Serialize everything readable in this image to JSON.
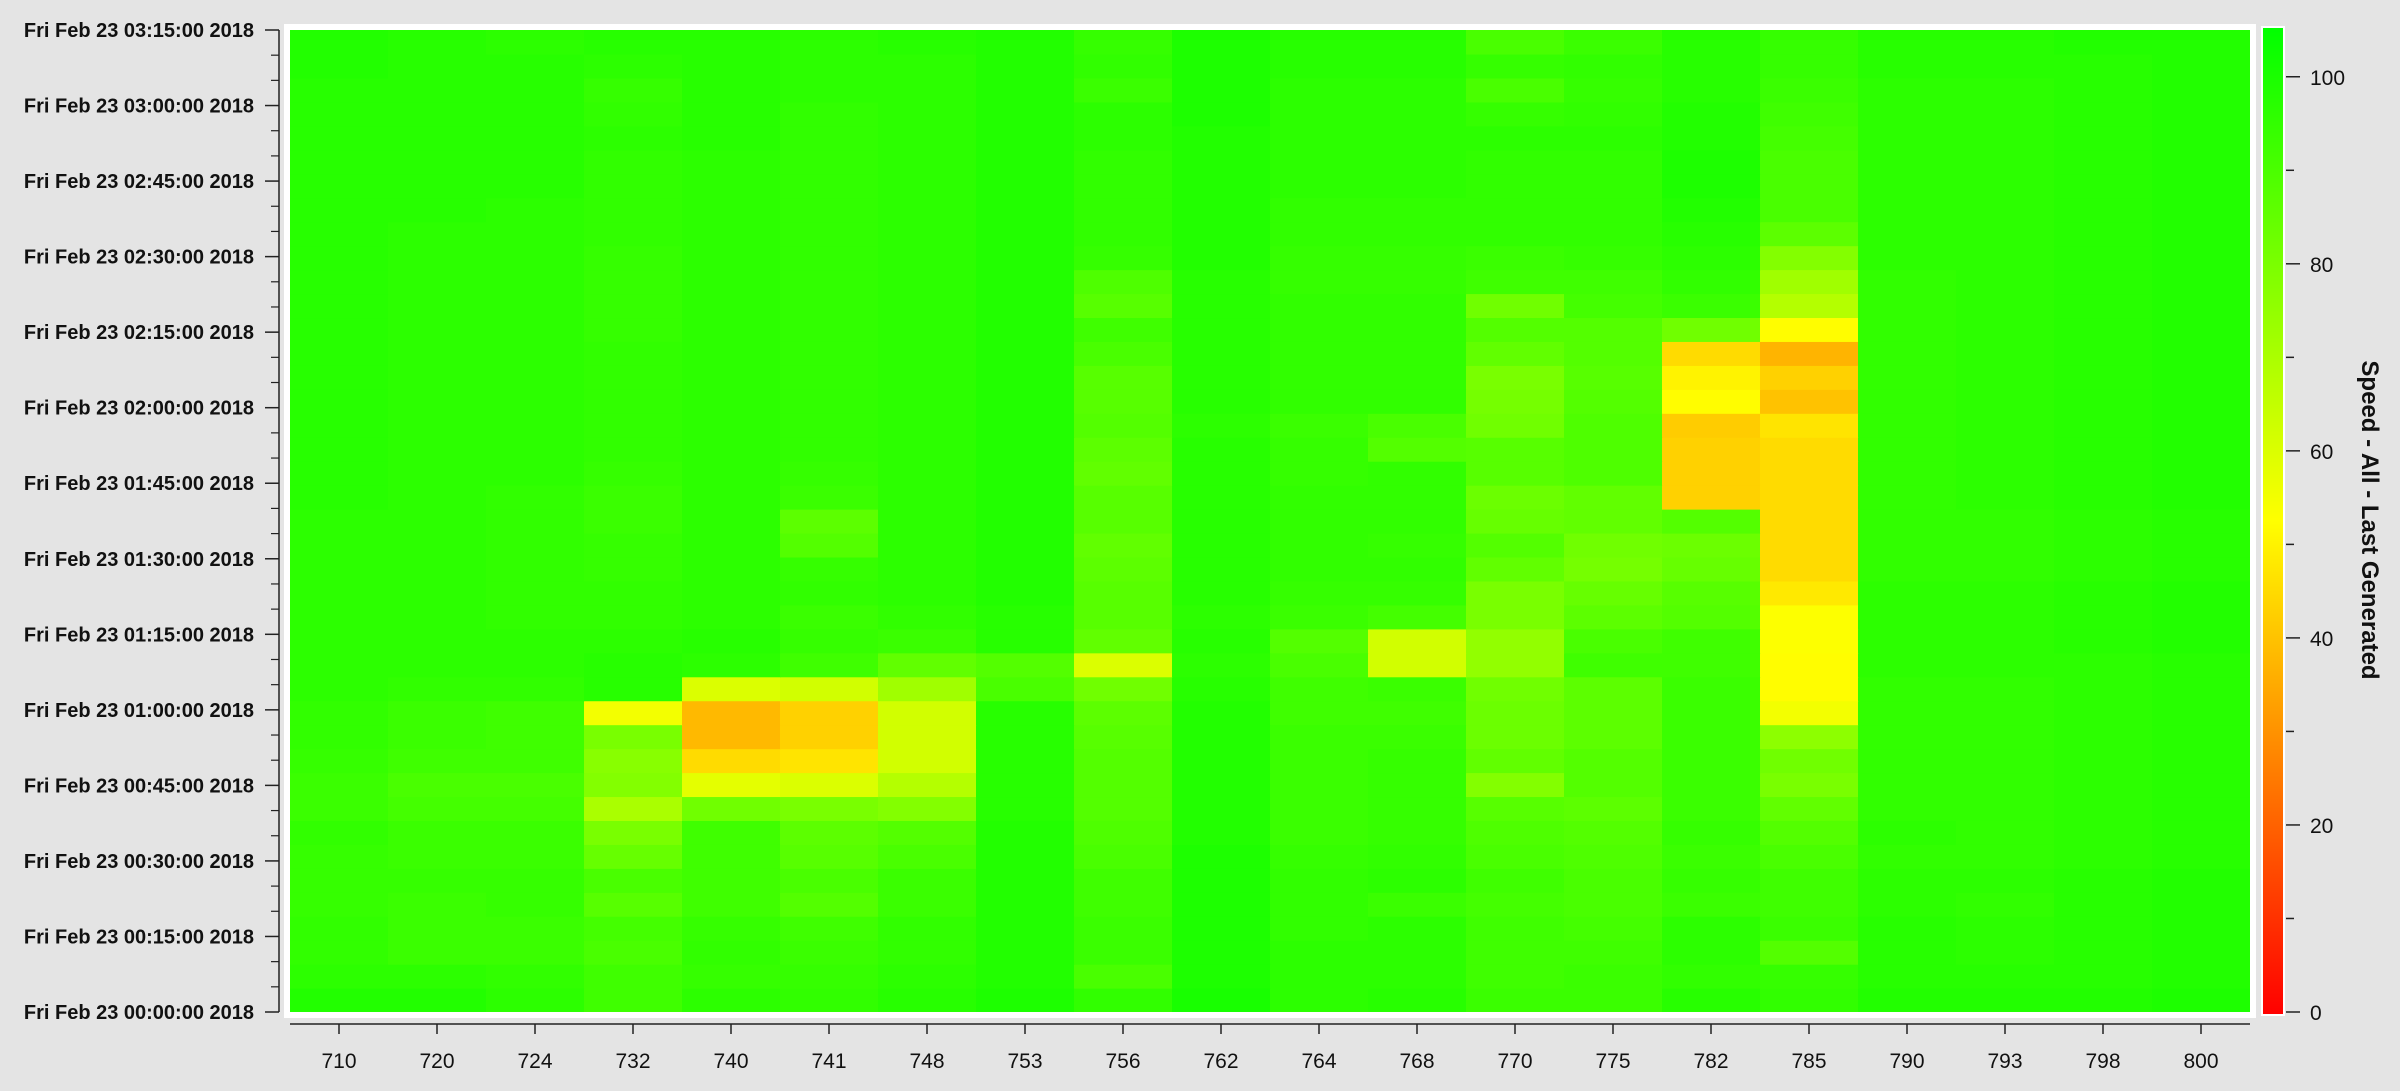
{
  "chart_data": {
    "type": "heatmap",
    "title": "",
    "xlabel": "",
    "ylabel": "",
    "colorbar_label": "Speed - All - Last Generated",
    "colorbar_range": [
      0,
      105
    ],
    "colorbar_ticks": [
      "0",
      "20",
      "40",
      "60",
      "80",
      "100"
    ],
    "color_scale": [
      "#ff0000",
      "#ffff00",
      "#00ff00"
    ],
    "categories": [
      "710",
      "720",
      "724",
      "732",
      "740",
      "741",
      "748",
      "753",
      "756",
      "762",
      "764",
      "768",
      "770",
      "775",
      "782",
      "785",
      "790",
      "793",
      "798",
      "800"
    ],
    "y_tick_labels": [
      "Fri Feb 23 03:15:00 2018",
      "Fri Feb 23 03:00:00 2018",
      "Fri Feb 23 02:45:00 2018",
      "Fri Feb 23 02:30:00 2018",
      "Fri Feb 23 02:15:00 2018",
      "Fri Feb 23 02:00:00 2018",
      "Fri Feb 23 01:45:00 2018",
      "Fri Feb 23 01:30:00 2018",
      "Fri Feb 23 01:15:00 2018",
      "Fri Feb 23 01:00:00 2018",
      "Fri Feb 23 00:45:00 2018",
      "Fri Feb 23 00:30:00 2018",
      "Fri Feb 23 00:15:00 2018",
      "Fri Feb 23 00:00:00 2018"
    ],
    "y_range": [
      "Fri Feb 23 00:00:00 2018",
      "Fri Feb 23 03:15:00 2018"
    ],
    "row_interval_minutes": 5,
    "rows_note_order": "rows listed from 00:00 (bottom) upward",
    "grid": false,
    "legend": "right colorbar",
    "values": [
      [
        98,
        98,
        96,
        92,
        96,
        95,
        97,
        99,
        95,
        100,
        96,
        97,
        93,
        93,
        97,
        95,
        98,
        98,
        98,
        99
      ],
      [
        96,
        96,
        95,
        92,
        94,
        94,
        96,
        98,
        90,
        99,
        96,
        96,
        92,
        93,
        95,
        94,
        97,
        97,
        97,
        98
      ],
      [
        95,
        93,
        93,
        90,
        95,
        93,
        95,
        98,
        93,
        99,
        96,
        96,
        92,
        92,
        96,
        88,
        97,
        96,
        97,
        98
      ],
      [
        95,
        93,
        93,
        91,
        94,
        92,
        95,
        98,
        93,
        99,
        95,
        96,
        92,
        91,
        96,
        93,
        97,
        96,
        97,
        98
      ],
      [
        94,
        93,
        94,
        87,
        92,
        88,
        93,
        98,
        92,
        99,
        95,
        93,
        91,
        90,
        93,
        92,
        96,
        95,
        97,
        98
      ],
      [
        94,
        94,
        94,
        90,
        92,
        90,
        93,
        98,
        92,
        99,
        95,
        96,
        92,
        90,
        94,
        92,
        96,
        96,
        97,
        98
      ],
      [
        94,
        93,
        93,
        84,
        92,
        87,
        90,
        98,
        90,
        99,
        94,
        95,
        90,
        89,
        93,
        90,
        95,
        95,
        96,
        97
      ],
      [
        95,
        93,
        93,
        80,
        92,
        86,
        88,
        98,
        89,
        98,
        93,
        94,
        89,
        88,
        94,
        88,
        96,
        95,
        96,
        97
      ],
      [
        93,
        91,
        91,
        70,
        82,
        80,
        78,
        97,
        88,
        98,
        93,
        94,
        87,
        86,
        93,
        85,
        95,
        95,
        96,
        97
      ],
      [
        93,
        90,
        90,
        78,
        58,
        60,
        68,
        97,
        88,
        98,
        93,
        94,
        78,
        88,
        93,
        80,
        95,
        95,
        96,
        97
      ],
      [
        94,
        92,
        92,
        77,
        45,
        47,
        62,
        97,
        88,
        98,
        93,
        94,
        85,
        88,
        93,
        82,
        95,
        95,
        96,
        97
      ],
      [
        95,
        93,
        92,
        80,
        38,
        43,
        62,
        97,
        87,
        98,
        93,
        93,
        83,
        86,
        93,
        76,
        95,
        95,
        96,
        97
      ],
      [
        95,
        93,
        92,
        55,
        38,
        43,
        62,
        97,
        86,
        98,
        92,
        92,
        83,
        86,
        93,
        55,
        95,
        95,
        96,
        97
      ],
      [
        96,
        95,
        95,
        97,
        60,
        62,
        72,
        90,
        82,
        97,
        92,
        93,
        82,
        86,
        93,
        52,
        95,
        95,
        96,
        97
      ],
      [
        96,
        96,
        96,
        97,
        96,
        92,
        85,
        88,
        60,
        96,
        90,
        62,
        75,
        92,
        92,
        52,
        96,
        96,
        96,
        97
      ],
      [
        96,
        96,
        96,
        96,
        97,
        94,
        93,
        97,
        85,
        97,
        88,
        62,
        75,
        90,
        92,
        53,
        96,
        96,
        97,
        98
      ],
      [
        96,
        96,
        95,
        95,
        96,
        93,
        95,
        97,
        87,
        96,
        93,
        91,
        80,
        86,
        88,
        53,
        96,
        96,
        97,
        98
      ],
      [
        96,
        96,
        95,
        95,
        96,
        95,
        96,
        98,
        87,
        97,
        94,
        94,
        80,
        84,
        87,
        48,
        96,
        96,
        97,
        98
      ],
      [
        96,
        96,
        95,
        94,
        96,
        94,
        96,
        98,
        86,
        97,
        95,
        95,
        85,
        81,
        84,
        45,
        95,
        95,
        96,
        97
      ],
      [
        96,
        96,
        95,
        94,
        96,
        88,
        96,
        98,
        85,
        97,
        95,
        94,
        88,
        82,
        83,
        45,
        95,
        95,
        96,
        97
      ],
      [
        96,
        96,
        95,
        93,
        96,
        86,
        96,
        98,
        87,
        97,
        95,
        95,
        84,
        85,
        88,
        45,
        95,
        95,
        96,
        97
      ],
      [
        97,
        96,
        95,
        93,
        96,
        93,
        96,
        98,
        87,
        97,
        95,
        95,
        83,
        85,
        43,
        45,
        95,
        96,
        97,
        98
      ],
      [
        97,
        96,
        96,
        94,
        96,
        94,
        96,
        98,
        85,
        97,
        94,
        95,
        87,
        89,
        43,
        45,
        95,
        96,
        97,
        98
      ],
      [
        97,
        96,
        96,
        95,
        96,
        95,
        96,
        98,
        86,
        97,
        94,
        88,
        87,
        89,
        43,
        45,
        95,
        96,
        97,
        98
      ],
      [
        97,
        96,
        96,
        95,
        96,
        95,
        96,
        98,
        88,
        96,
        93,
        90,
        82,
        89,
        42,
        47,
        95,
        96,
        97,
        98
      ],
      [
        97,
        96,
        96,
        95,
        96,
        95,
        96,
        98,
        87,
        97,
        95,
        95,
        81,
        88,
        52,
        40,
        95,
        96,
        97,
        98
      ],
      [
        97,
        96,
        96,
        95,
        96,
        95,
        96,
        98,
        87,
        97,
        95,
        95,
        80,
        87,
        50,
        43,
        95,
        96,
        97,
        98
      ],
      [
        97,
        96,
        96,
        95,
        96,
        95,
        96,
        98,
        90,
        97,
        95,
        95,
        85,
        88,
        45,
        37,
        95,
        96,
        97,
        98
      ],
      [
        97,
        96,
        96,
        94,
        96,
        95,
        96,
        98,
        92,
        97,
        95,
        95,
        88,
        88,
        82,
        52,
        95,
        96,
        97,
        98
      ],
      [
        97,
        96,
        96,
        94,
        96,
        95,
        96,
        98,
        87,
        97,
        95,
        95,
        82,
        91,
        93,
        68,
        95,
        96,
        97,
        98
      ],
      [
        97,
        96,
        96,
        94,
        96,
        95,
        96,
        98,
        89,
        97,
        94,
        94,
        92,
        92,
        95,
        72,
        95,
        96,
        97,
        98
      ],
      [
        97,
        96,
        96,
        94,
        96,
        95,
        96,
        98,
        94,
        98,
        94,
        94,
        93,
        94,
        96,
        78,
        96,
        96,
        97,
        98
      ],
      [
        97,
        96,
        96,
        95,
        96,
        95,
        96,
        98,
        95,
        98,
        95,
        95,
        95,
        95,
        97,
        86,
        96,
        96,
        97,
        98
      ],
      [
        97,
        97,
        96,
        95,
        96,
        95,
        96,
        98,
        95,
        98,
        95,
        95,
        95,
        95,
        98,
        90,
        96,
        96,
        97,
        98
      ],
      [
        97,
        97,
        97,
        95,
        96,
        95,
        96,
        98,
        95,
        98,
        96,
        96,
        95,
        95,
        99,
        90,
        96,
        96,
        97,
        98
      ],
      [
        97,
        97,
        97,
        95,
        96,
        95,
        96,
        98,
        95,
        98,
        96,
        96,
        95,
        95,
        99,
        90,
        96,
        96,
        97,
        98
      ],
      [
        97,
        97,
        97,
        96,
        97,
        95,
        96,
        98,
        96,
        98,
        96,
        96,
        96,
        96,
        98,
        91,
        96,
        96,
        97,
        98
      ],
      [
        97,
        97,
        97,
        95,
        97,
        95,
        96,
        98,
        96,
        99,
        96,
        96,
        94,
        95,
        98,
        92,
        96,
        96,
        97,
        98
      ],
      [
        97,
        97,
        97,
        94,
        97,
        96,
        96,
        98,
        93,
        99,
        96,
        96,
        90,
        94,
        97,
        93,
        96,
        96,
        97,
        98
      ],
      [
        98,
        97,
        97,
        96,
        97,
        96,
        96,
        98,
        95,
        99,
        97,
        97,
        94,
        95,
        97,
        94,
        97,
        97,
        97,
        98
      ],
      [
        98,
        97,
        96,
        97,
        97,
        96,
        97,
        98,
        94,
        99,
        97,
        97,
        90,
        93,
        97,
        94,
        97,
        97,
        98,
        98
      ]
    ]
  }
}
